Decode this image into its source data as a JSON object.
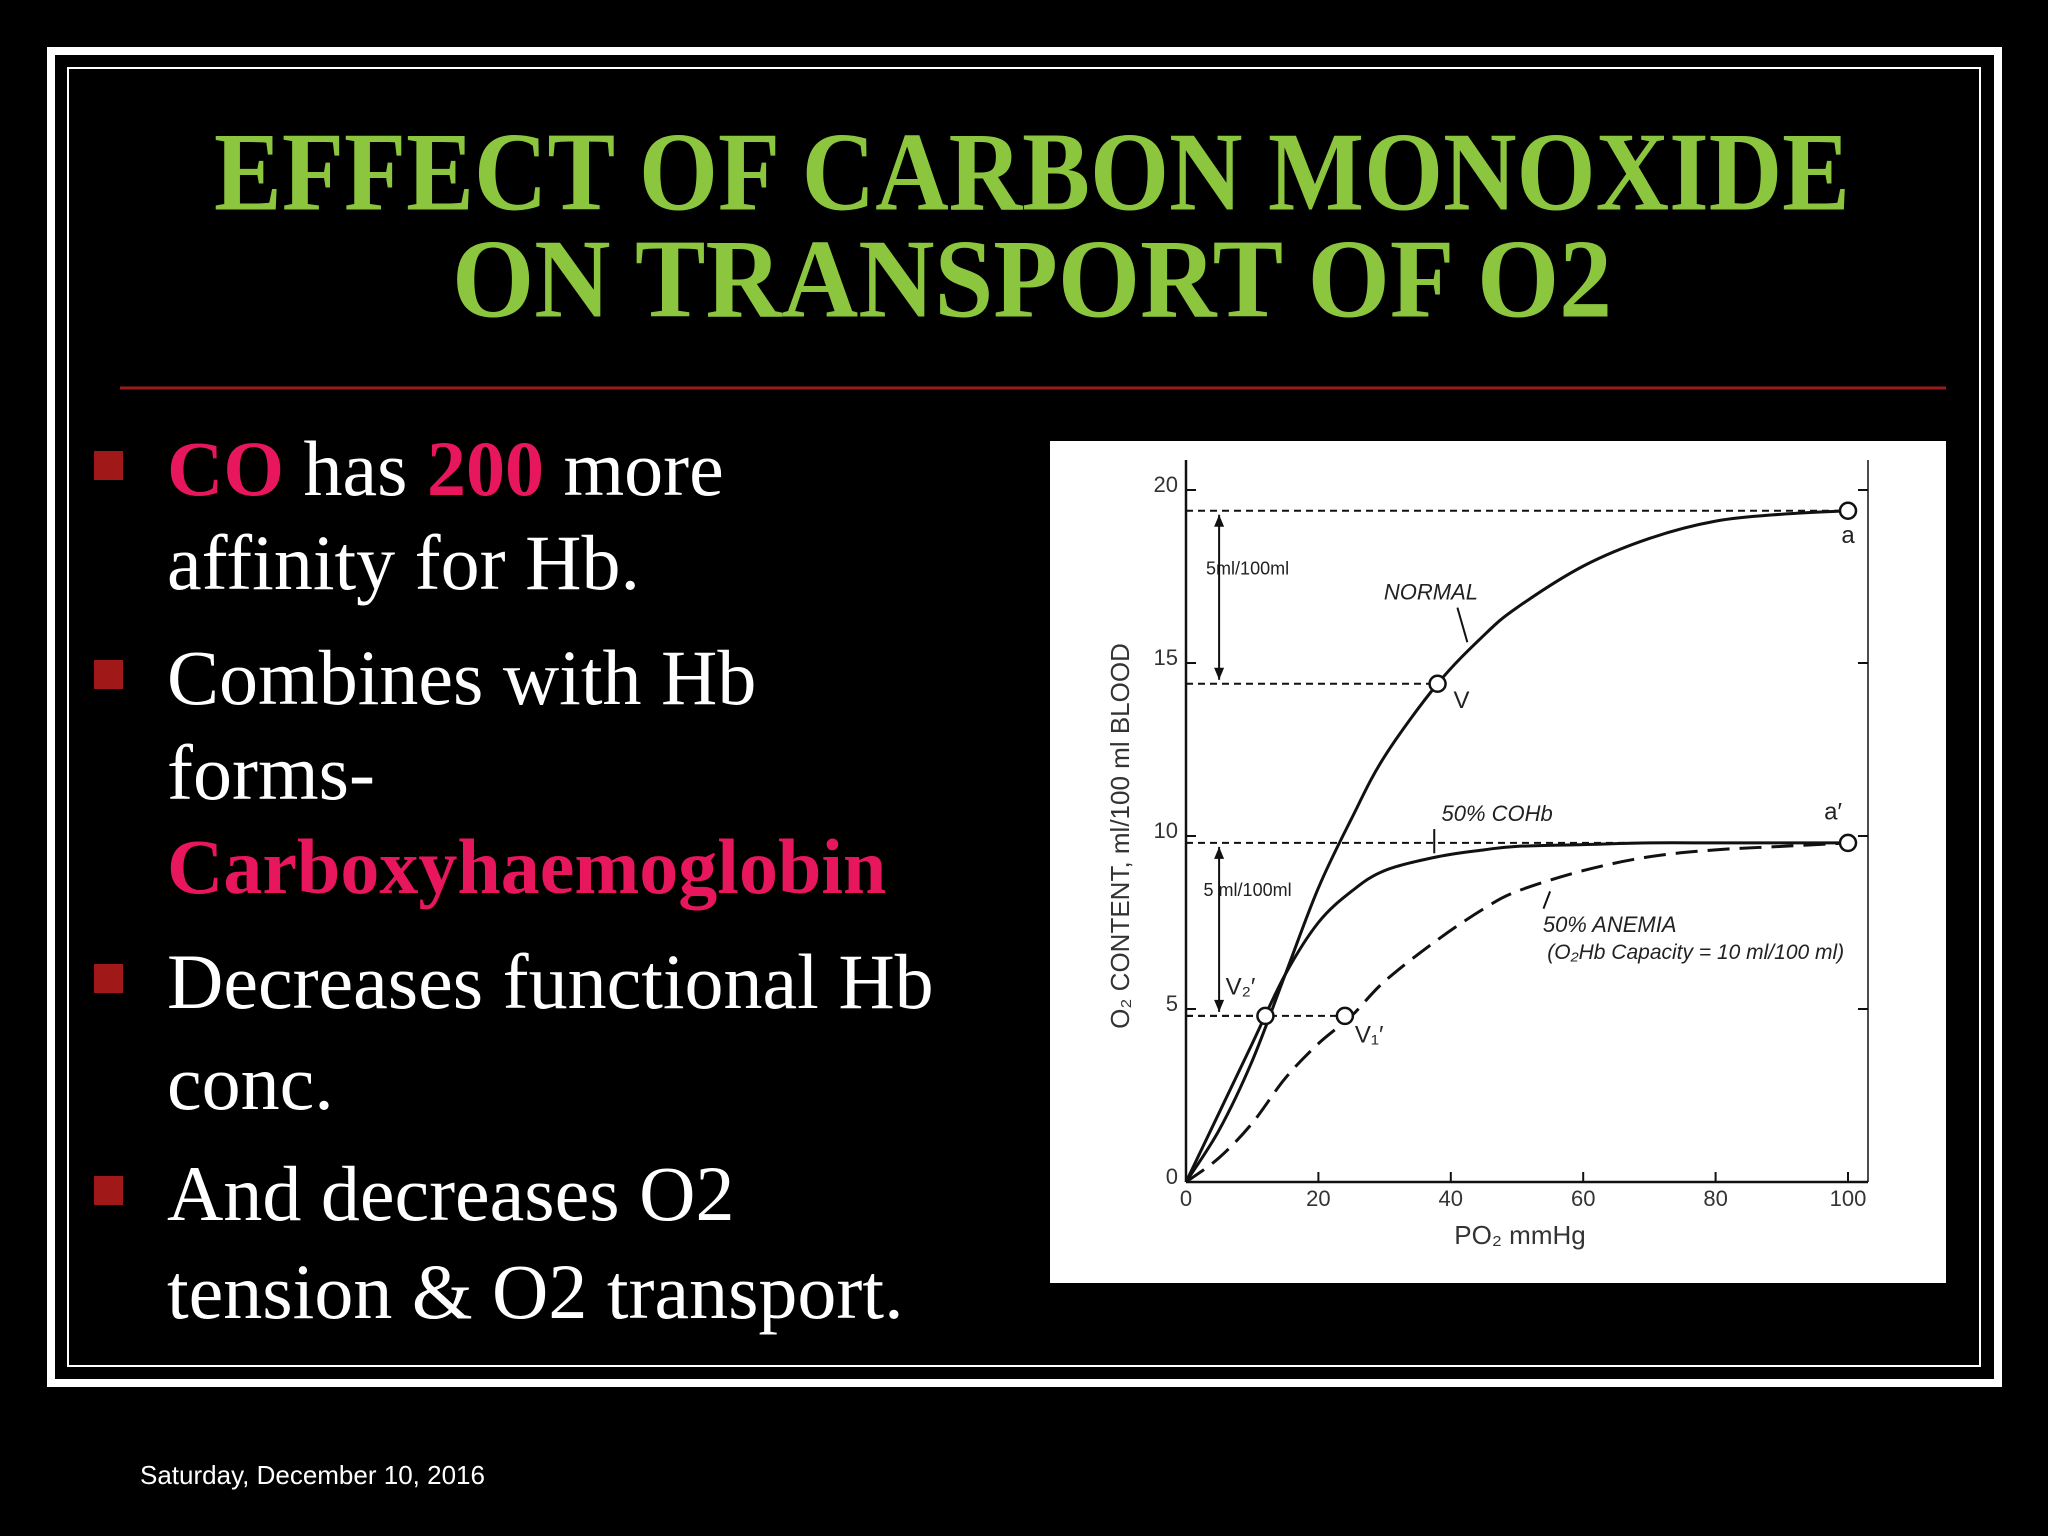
{
  "title": [
    "EFFECT OF CARBON MONOXIDE",
    "ON TRANSPORT OF O2"
  ],
  "bullets": [
    {
      "lines": [
        [
          {
            "text": "CO",
            "color": "#e8175d"
          },
          {
            "text": " has ",
            "color": "#ffffff"
          },
          {
            "text": "200",
            "color": "#e8175d"
          },
          {
            "text": " more",
            "color": "#ffffff"
          }
        ],
        [
          {
            "text": "affinity for Hb.",
            "color": "#ffffff"
          }
        ]
      ]
    },
    {
      "lines": [
        [
          {
            "text": "Combines with Hb",
            "color": "#ffffff"
          }
        ],
        [
          {
            "text": "forms-",
            "color": "#ffffff"
          }
        ],
        [
          {
            "text": "Carboxyhaemoglobin",
            "color": "#e8175d"
          }
        ]
      ]
    },
    {
      "lines": [
        [
          {
            "text": "Decreases functional Hb",
            "color": "#ffffff"
          }
        ],
        [
          {
            "text": "conc.",
            "color": "#ffffff"
          }
        ]
      ]
    },
    {
      "lines": [
        [
          {
            "text": "And decreases O2",
            "color": "#ffffff"
          }
        ],
        [
          {
            "text": "tension & O2 transport.",
            "color": "#ffffff"
          }
        ]
      ]
    }
  ],
  "footer": "Saturday, December 10, 2016",
  "chart_data": {
    "type": "line",
    "x_label": "PO₂  mmHg",
    "y_label": "O₂ CONTENT, ml/100 ml BLOOD",
    "x": [
      0,
      5,
      10,
      15,
      20,
      25,
      30,
      38,
      45,
      50,
      60,
      70,
      80,
      90,
      100
    ],
    "series": [
      {
        "name": "NORMAL",
        "color": "#111111",
        "dash": false,
        "values": [
          0,
          1.5,
          3.5,
          6,
          8.5,
          10.5,
          12.3,
          14.4,
          15.8,
          16.6,
          17.8,
          18.6,
          19.1,
          19.3,
          19.4
        ]
      },
      {
        "name": "50% COHb",
        "color": "#111111",
        "dash": false,
        "values": [
          0,
          2,
          4,
          6,
          7.5,
          8.4,
          9,
          9.4,
          9.6,
          9.7,
          9.75,
          9.8,
          9.8,
          9.8,
          9.8
        ]
      },
      {
        "name": "50% ANEMIA",
        "color": "#111111",
        "dash": true,
        "values": [
          0,
          0.7,
          1.7,
          3,
          4,
          4.8,
          5.8,
          7,
          7.9,
          8.4,
          9,
          9.4,
          9.6,
          9.7,
          9.8
        ]
      }
    ],
    "points": [
      {
        "label": "a",
        "x": 100,
        "y": 19.4
      },
      {
        "label": "V",
        "x": 38,
        "y": 14.4
      },
      {
        "label": "a′",
        "x": 100,
        "y": 9.8
      },
      {
        "label": "V₂′",
        "x": 12,
        "y": 4.8
      },
      {
        "label": "V₁′",
        "x": 24,
        "y": 4.8
      }
    ],
    "annotations": [
      "5ml/100ml",
      "5 ml/100ml",
      "(O₂Hb  Capacity = 10 ml/100 ml)"
    ],
    "xlim": [
      0,
      100
    ],
    "xticks": [
      0,
      20,
      40,
      60,
      80,
      100
    ],
    "ylim": [
      0,
      20
    ],
    "yticks": [
      0,
      5,
      10,
      15,
      20
    ]
  }
}
